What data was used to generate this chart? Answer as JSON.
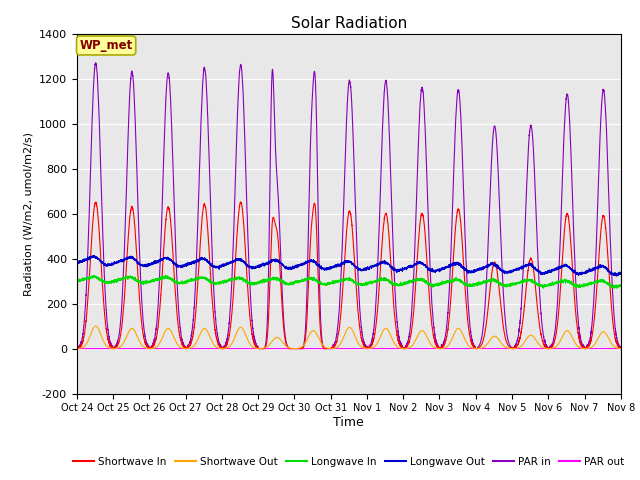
{
  "title": "Solar Radiation",
  "xlabel": "Time",
  "ylabel": "Radiation (W/m2, umol/m2/s)",
  "ylim": [
    -200,
    1400
  ],
  "yticks": [
    -200,
    0,
    200,
    400,
    600,
    800,
    1000,
    1200,
    1400
  ],
  "date_labels": [
    "Oct 24",
    "Oct 25",
    "Oct 26",
    "Oct 27",
    "Oct 28",
    "Oct 29",
    "Oct 30",
    "Oct 31",
    "Nov 1",
    "Nov 2",
    "Nov 3",
    "Nov 4",
    "Nov 5",
    "Nov 6",
    "Nov 7",
    "Nov 8"
  ],
  "n_days": 15,
  "points_per_day": 288,
  "colors": {
    "shortwave_in": "#ff0000",
    "shortwave_out": "#ffa500",
    "longwave_in": "#00dd00",
    "longwave_out": "#0000cc",
    "par_in": "#8800bb",
    "par_out": "#ff00ff"
  },
  "background_color": "#e8e8e8",
  "legend_label_color": "#800000",
  "annotation_box_color": "#ffff99",
  "annotation_text": "WP_met"
}
